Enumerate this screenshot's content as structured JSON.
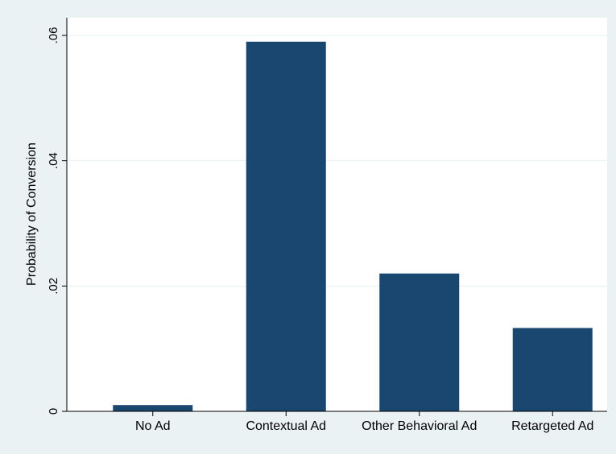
{
  "colors": {
    "figure_background": "#eaf2f3",
    "plot_background": "#ffffff",
    "bar": "#1a476f",
    "grid": "#eaf2f3",
    "axis": "#000000"
  },
  "chart_data": {
    "type": "bar",
    "title": "",
    "xlabel": "",
    "ylabel": "Probability of Conversion",
    "categories": [
      "No Ad",
      "Contextual Ad",
      "Other Behavioral Ad",
      "Retargeted Ad"
    ],
    "values": [
      0.001,
      0.059,
      0.022,
      0.0133
    ],
    "ylim": [
      0,
      0.06
    ],
    "yticks": [
      0,
      0.02,
      0.04,
      0.06
    ],
    "ytick_labels": [
      "0",
      ".02",
      ".04",
      ".06"
    ],
    "grid": true,
    "legend": "none"
  }
}
